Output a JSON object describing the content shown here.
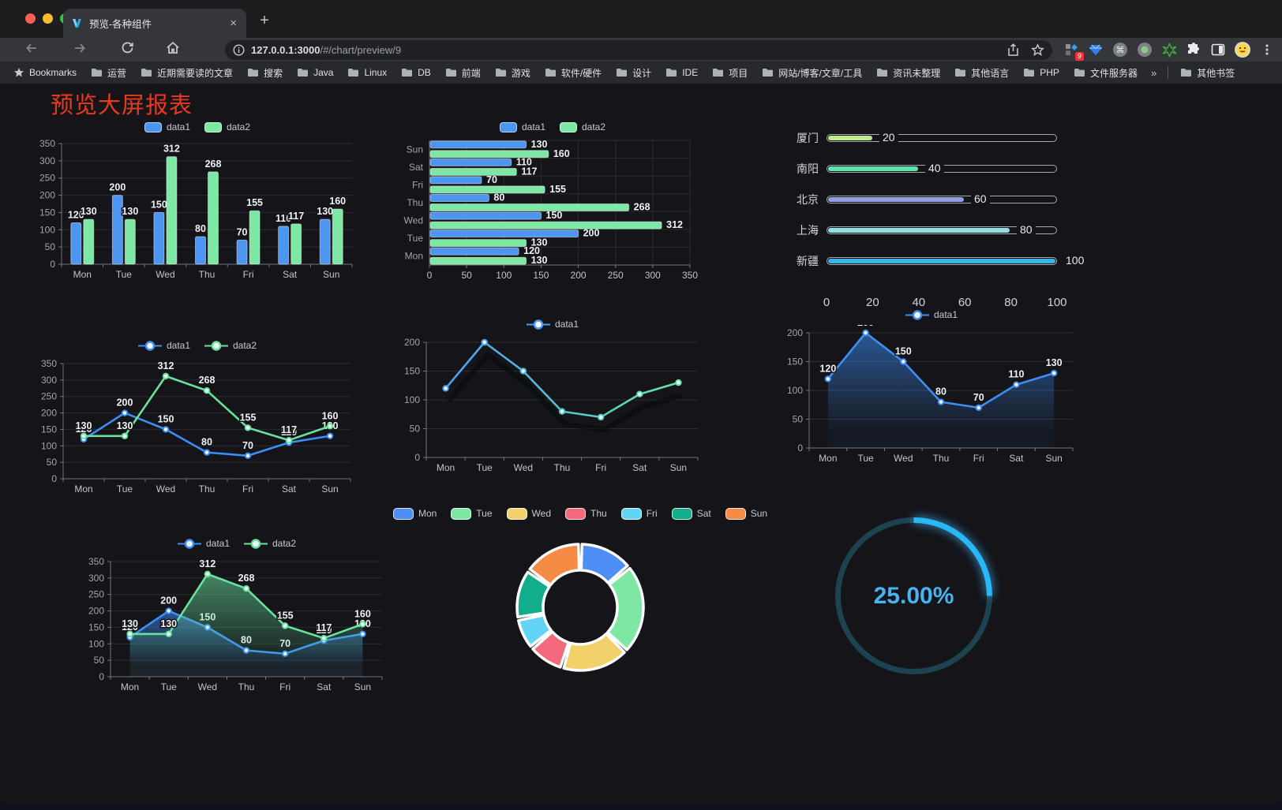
{
  "browser": {
    "tab_title": "预览-各种组件",
    "url_host": "127.0.0.1:3000",
    "url_path": "/#/chart/preview/9",
    "extension_badge": "9",
    "bookmarks_root_label": "Bookmarks",
    "bookmarks": [
      "运营",
      "近期需要读的文章",
      "搜索",
      "Java",
      "Linux",
      "DB",
      "前端",
      "游戏",
      "软件/硬件",
      "设计",
      "IDE",
      "项目",
      "网站/博客/文章/工具",
      "资讯未整理",
      "其他语言",
      "PHP",
      "文件服务器"
    ],
    "overflow_chevron": "»",
    "other_bookmarks_label": "其他书签",
    "new_tab_plus": "+",
    "tab_close": "×"
  },
  "page": {
    "title": "预览大屏报表",
    "title_color": "#e9391e",
    "background": "#141419"
  },
  "chart_data": [
    {
      "id": "chart-bar",
      "type": "bar",
      "categories": [
        "Mon",
        "Tue",
        "Wed",
        "Thu",
        "Fri",
        "Sat",
        "Sun"
      ],
      "series": [
        {
          "name": "data1",
          "color": "#4c96f2",
          "values": [
            120,
            200,
            150,
            80,
            70,
            110,
            130
          ]
        },
        {
          "name": "data2",
          "color": "#7ce8a4",
          "values": [
            130,
            130,
            312,
            268,
            155,
            117,
            160
          ]
        }
      ],
      "ymax": 350,
      "ystep": 50,
      "legend_position": "top",
      "grid": true
    },
    {
      "id": "chart-hbar",
      "type": "hbar",
      "categories": [
        "Mon",
        "Tue",
        "Wed",
        "Thu",
        "Fri",
        "Sat",
        "Sun"
      ],
      "series": [
        {
          "name": "data1",
          "color": "#4c96f2",
          "values": [
            120,
            200,
            150,
            80,
            70,
            110,
            130
          ]
        },
        {
          "name": "data2",
          "color": "#7ce8a4",
          "values": [
            130,
            130,
            312,
            268,
            155,
            117,
            160
          ]
        }
      ],
      "xmax": 350,
      "xstep": 50,
      "legend_position": "top",
      "grid": true
    },
    {
      "id": "chart-progress",
      "type": "progress",
      "items": [
        {
          "label": "厦门",
          "value": 20,
          "color": "#c3e88f"
        },
        {
          "label": "南阳",
          "value": 40,
          "color": "#5fe3ae"
        },
        {
          "label": "北京",
          "value": 60,
          "color": "#969ce0"
        },
        {
          "label": "上海",
          "value": 80,
          "color": "#8fe0e6"
        },
        {
          "label": "新疆",
          "value": 100,
          "color": "#38b3e8"
        }
      ],
      "max": 100,
      "xticks": [
        0,
        20,
        40,
        60,
        80,
        100
      ]
    },
    {
      "id": "chart-line2",
      "type": "line",
      "categories": [
        "Mon",
        "Tue",
        "Wed",
        "Thu",
        "Fri",
        "Sat",
        "Sun"
      ],
      "series": [
        {
          "name": "data1",
          "color": "#3e8ef7",
          "values": [
            120,
            200,
            150,
            80,
            70,
            110,
            130
          ]
        },
        {
          "name": "data2",
          "color": "#67e39e",
          "values": [
            130,
            130,
            312,
            268,
            155,
            117,
            160
          ]
        }
      ],
      "ymax": 350,
      "ystep": 50,
      "labels": true,
      "legend_position": "top",
      "grid": true
    },
    {
      "id": "chart-linegrad",
      "type": "line",
      "categories": [
        "Mon",
        "Tue",
        "Wed",
        "Thu",
        "Fri",
        "Sat",
        "Sun"
      ],
      "series": [
        {
          "name": "data1",
          "gradient": [
            "#4a9ef8",
            "#62e6a5"
          ],
          "values": [
            120,
            200,
            150,
            80,
            70,
            110,
            130
          ]
        }
      ],
      "ymax": 200,
      "ystep": 50,
      "labels": false,
      "shadow": true,
      "legend_position": "top",
      "grid": true
    },
    {
      "id": "chart-area1",
      "type": "line",
      "categories": [
        "Mon",
        "Tue",
        "Wed",
        "Thu",
        "Fri",
        "Sat",
        "Sun"
      ],
      "series": [
        {
          "name": "data1",
          "color": "#3e8ef7",
          "area": true,
          "values": [
            120,
            200,
            150,
            80,
            70,
            110,
            130
          ]
        }
      ],
      "ymax": 200,
      "ystep": 50,
      "labels": true,
      "legend_position": "top",
      "grid": true
    },
    {
      "id": "chart-area2",
      "type": "line",
      "categories": [
        "Mon",
        "Tue",
        "Wed",
        "Thu",
        "Fri",
        "Sat",
        "Sun"
      ],
      "series": [
        {
          "name": "data1",
          "color": "#3e8ef7",
          "area": true,
          "values": [
            120,
            200,
            150,
            80,
            70,
            110,
            130
          ]
        },
        {
          "name": "data2",
          "color": "#67e39e",
          "area": true,
          "values": [
            130,
            130,
            312,
            268,
            155,
            117,
            160
          ]
        }
      ],
      "ymax": 350,
      "ystep": 50,
      "labels": true,
      "legend_position": "top",
      "grid": true
    },
    {
      "id": "chart-pie",
      "type": "pie",
      "items": [
        {
          "label": "Mon",
          "value": 120,
          "color": "#4e8ef7"
        },
        {
          "label": "Tue",
          "value": 200,
          "color": "#7fe7a4"
        },
        {
          "label": "Wed",
          "value": 150,
          "color": "#f2d16b"
        },
        {
          "label": "Thu",
          "value": 80,
          "color": "#f4697b"
        },
        {
          "label": "Fri",
          "value": 70,
          "color": "#62d4f5"
        },
        {
          "label": "Sat",
          "value": 110,
          "color": "#12ae8b"
        },
        {
          "label": "Sun",
          "value": 130,
          "color": "#f58b45"
        }
      ],
      "legend_position": "top",
      "inner_radius": 47,
      "outer_radius": 80
    },
    {
      "id": "chart-gauge",
      "type": "gauge",
      "value": "25.00%",
      "percent": 25,
      "color": "#27b8f5",
      "track_color": "#1d4250",
      "text_color": "#46b4f0"
    }
  ]
}
